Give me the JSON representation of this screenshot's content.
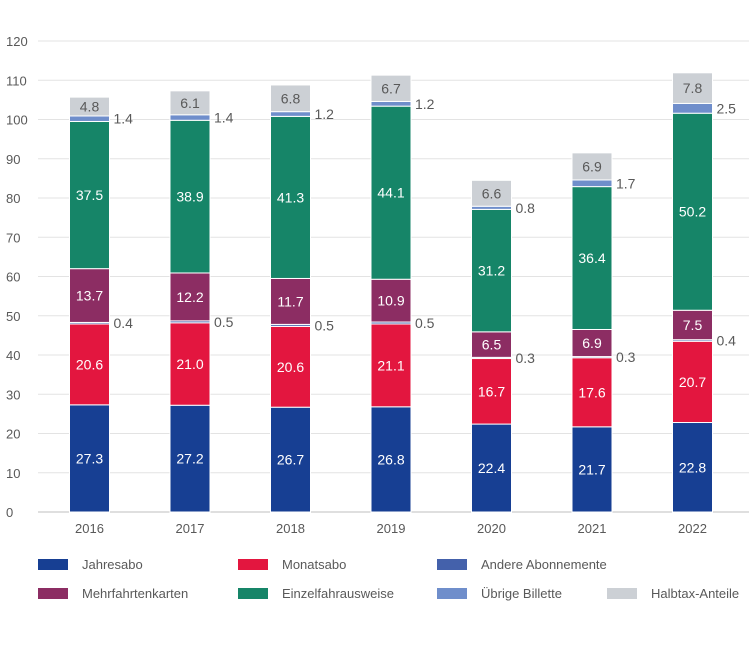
{
  "chart_data": {
    "type": "bar",
    "stacked": true,
    "categories": [
      "2016",
      "2017",
      "2018",
      "2019",
      "2020",
      "2021",
      "2022"
    ],
    "ylim": [
      0,
      120
    ],
    "yticks": [
      0,
      10,
      20,
      30,
      40,
      50,
      60,
      70,
      80,
      90,
      100,
      110,
      120
    ],
    "grid": true,
    "legend_position": "bottom",
    "series": [
      {
        "name": "Jahresabo",
        "color": "#173f93",
        "label_color": "#ffffff",
        "label_inside": true,
        "values": [
          27.3,
          27.2,
          26.7,
          26.8,
          22.4,
          21.7,
          22.8
        ]
      },
      {
        "name": "Monatsabo",
        "color": "#e3163f",
        "label_color": "#ffffff",
        "label_inside": true,
        "values": [
          20.6,
          21.0,
          20.6,
          21.1,
          16.7,
          17.6,
          20.7
        ]
      },
      {
        "name": "Andere Abonnemente",
        "color": "#4461ab",
        "label_color": "#595959",
        "label_inside": false,
        "values": [
          0.4,
          0.5,
          0.5,
          0.5,
          0.3,
          0.3,
          0.4
        ]
      },
      {
        "name": "Mehrfahrtenkarten",
        "color": "#8c2d63",
        "label_color": "#ffffff",
        "label_inside": true,
        "values": [
          13.7,
          12.2,
          11.7,
          10.9,
          6.5,
          6.9,
          7.5
        ]
      },
      {
        "name": "Einzelfahrausweise",
        "color": "#168568",
        "label_color": "#ffffff",
        "label_inside": true,
        "values": [
          37.5,
          38.9,
          41.3,
          44.1,
          31.2,
          36.4,
          50.2
        ]
      },
      {
        "name": "Übrige Billette",
        "color": "#6f8ecb",
        "label_color": "#595959",
        "label_inside": false,
        "values": [
          1.4,
          1.4,
          1.2,
          1.2,
          0.8,
          1.7,
          2.5
        ]
      },
      {
        "name": "Halbtax-Anteile",
        "color": "#ccd0d5",
        "label_color": "#595959",
        "label_inside": true,
        "values": [
          4.8,
          6.1,
          6.8,
          6.7,
          6.6,
          6.9,
          7.8
        ]
      }
    ],
    "value_labels": [
      [
        "27.3",
        "27.2",
        "26.7",
        "26.8",
        "22.4",
        "21.7",
        "22.8"
      ],
      [
        "20.6",
        "21.0",
        "20.6",
        "21.1",
        "16.7",
        "17.6",
        "20.7"
      ],
      [
        "0.4",
        "0.5",
        "0.5",
        "0.5",
        "0.3",
        "0.3",
        "0.4"
      ],
      [
        "13.7",
        "12.2",
        "11.7",
        "10.9",
        "6.5",
        "6.9",
        "7.5"
      ],
      [
        "37.5",
        "38.9",
        "41.3",
        "44.1",
        "31.2",
        "36.4",
        "50.2"
      ],
      [
        "1.4",
        "1.4",
        "1.2",
        "1.2",
        "0.8",
        "1.7",
        "2.5"
      ],
      [
        "4.8",
        "6.1",
        "6.8",
        "6.7",
        "6.6",
        "6.9",
        "7.8"
      ]
    ]
  }
}
